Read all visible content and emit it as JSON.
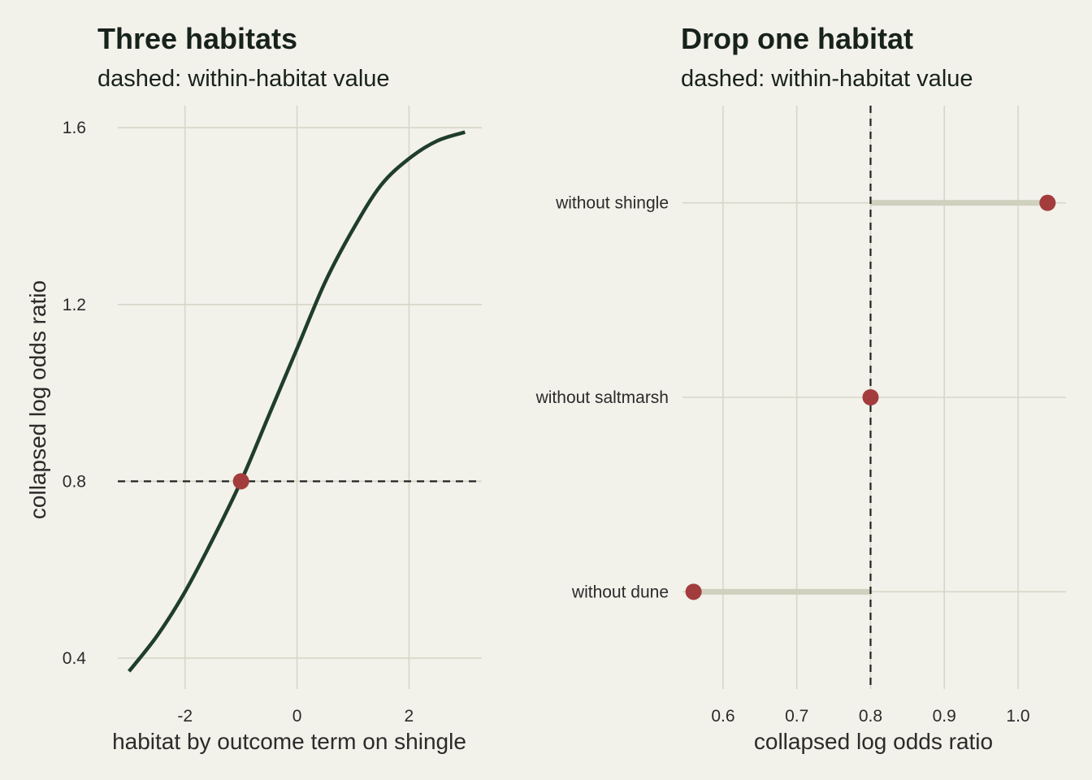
{
  "colors": {
    "background": "#f2f1ea",
    "grid": "#d7d7c8",
    "curve": "#1f3d2b",
    "point": "#a33d3d",
    "segment": "#cfd1bf",
    "reference_line": "#222222",
    "text": "#18221c"
  },
  "chart_data": [
    {
      "type": "line",
      "title": "Three habitats",
      "subtitle": "dashed: within-habitat value",
      "xlabel": "habitat by outcome term on shingle",
      "ylabel": "collapsed log odds ratio",
      "xlim": [
        -3.2,
        3.3
      ],
      "ylim": [
        0.33,
        1.65
      ],
      "xticks": [
        -2,
        0,
        2
      ],
      "xtick_labels": [
        "-2",
        "0",
        "2"
      ],
      "yticks": [
        0.4,
        0.8,
        1.2,
        1.6
      ],
      "ytick_labels": [
        "0.4",
        "0.8",
        "1.2",
        "1.6"
      ],
      "grid": true,
      "series": [
        {
          "x": [
            -3.0,
            -2.5,
            -2.0,
            -1.5,
            -1.0,
            -0.5,
            0.0,
            0.5,
            1.0,
            1.5,
            2.0,
            2.5,
            3.0
          ],
          "y": [
            0.37,
            0.45,
            0.55,
            0.67,
            0.8,
            0.95,
            1.1,
            1.25,
            1.37,
            1.47,
            1.53,
            1.57,
            1.59
          ]
        }
      ],
      "highlight_point": {
        "x": -1.0,
        "y": 0.8
      },
      "reference_line": {
        "orientation": "horizontal",
        "value": 0.8,
        "style": "dashed"
      }
    },
    {
      "type": "scatter",
      "title": "Drop one habitat",
      "subtitle": "dashed: within-habitat value",
      "xlabel": "collapsed log odds ratio",
      "ylabel": "",
      "xlim": [
        0.545,
        1.065
      ],
      "xticks": [
        0.6,
        0.7,
        0.8,
        0.9,
        1.0
      ],
      "xtick_labels": [
        "0.6",
        "0.7",
        "0.8",
        "0.9",
        "1.0"
      ],
      "grid": true,
      "categories": [
        "without shingle",
        "without saltmarsh",
        "without dune"
      ],
      "values": [
        1.04,
        0.8,
        0.56
      ],
      "reference_line": {
        "orientation": "vertical",
        "value": 0.8,
        "style": "dashed"
      }
    }
  ]
}
